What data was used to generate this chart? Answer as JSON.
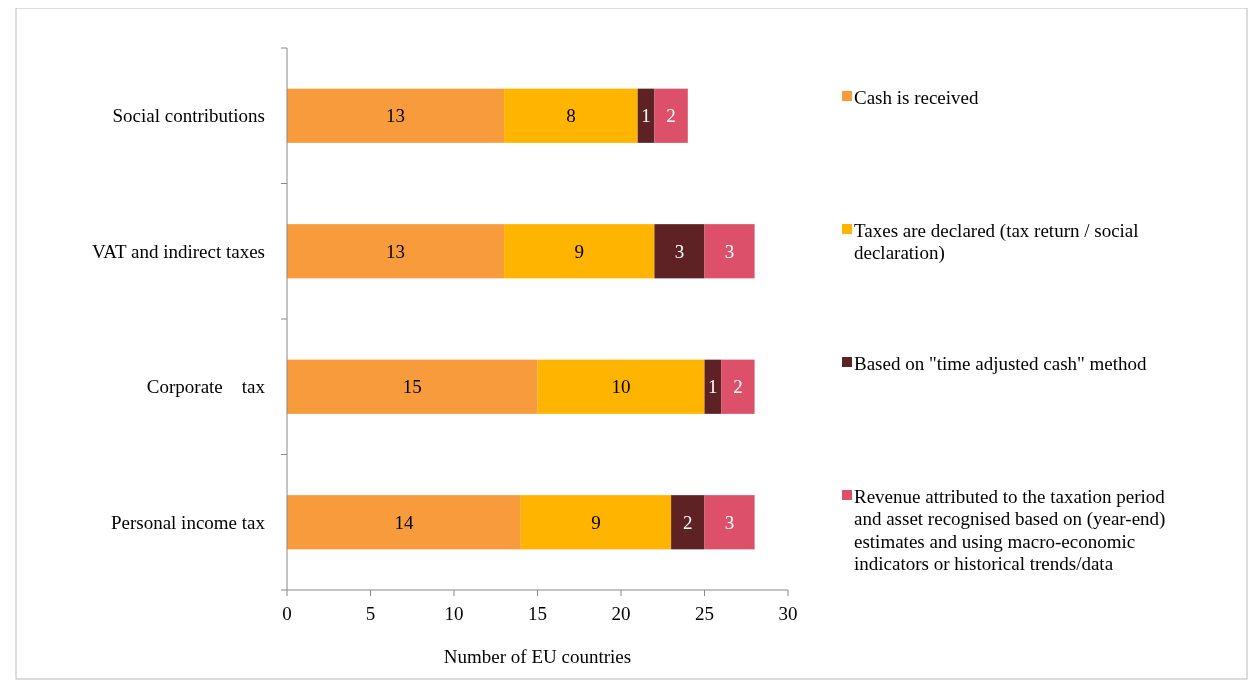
{
  "chart_data": {
    "type": "bar",
    "orientation": "horizontal",
    "stacked": true,
    "xlabel": "Number of EU countries",
    "categories": [
      "Social contributions",
      "VAT and indirect taxes",
      "Corporate    tax",
      "Personal income tax"
    ],
    "series": [
      {
        "name": "Cash is received",
        "color": "#f89b3c",
        "values": [
          13,
          13,
          15,
          14
        ]
      },
      {
        "name": "Taxes are declared (tax return / social declaration)",
        "color": "#ffb400",
        "values": [
          8,
          9,
          10,
          9
        ]
      },
      {
        "name": "Based on \"time adjusted cash\" method",
        "color": "#5e2224",
        "values": [
          1,
          3,
          1,
          2
        ]
      },
      {
        "name": "Revenue attributed to the taxation period and asset recognised based on (year-end) estimates and using macro-economic indicators or historical trends/data",
        "color": "#dc5069",
        "values": [
          2,
          3,
          2,
          3
        ]
      }
    ],
    "xlim": [
      0,
      30
    ],
    "xticks": [
      0,
      5,
      10,
      15,
      20,
      25,
      30
    ],
    "data_labels": true,
    "legend": "right",
    "grid": false
  }
}
